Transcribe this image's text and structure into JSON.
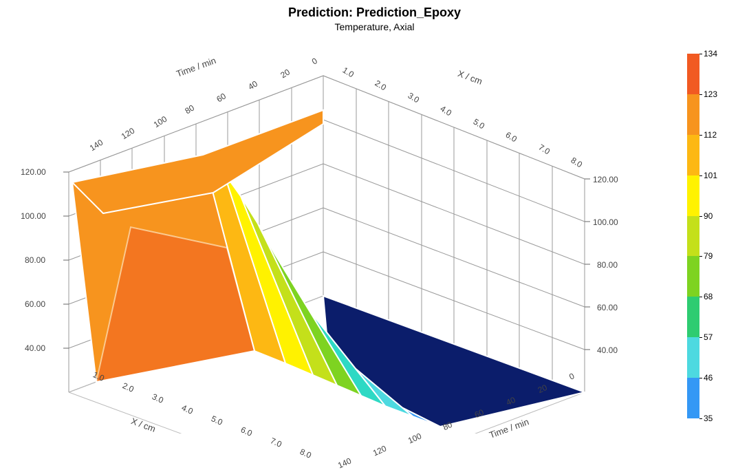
{
  "title": "Prediction: Prediction_Epoxy",
  "subtitle": "Temperature, Axial",
  "chart": {
    "type": "3d-surface",
    "x_axis": {
      "label": "X / cm",
      "ticks": [
        "1.0",
        "2.0",
        "3.0",
        "4.0",
        "5.0",
        "6.0",
        "7.0",
        "8.0"
      ]
    },
    "y_axis": {
      "label": "Time / min",
      "ticks": [
        "0",
        "20",
        "40",
        "60",
        "80",
        "100",
        "120",
        "140"
      ]
    },
    "z_axis": {
      "label": "",
      "ticks": [
        "40.00",
        "60.00",
        "80.00",
        "100.00",
        "120.00"
      ]
    },
    "colorbar": {
      "stops": [
        {
          "value": "134",
          "color": "#f15a22"
        },
        {
          "value": "123",
          "color": "#f7941e"
        },
        {
          "value": "112",
          "color": "#fdb813"
        },
        {
          "value": "101",
          "color": "#fff200"
        },
        {
          "value": "90",
          "color": "#c4e01a"
        },
        {
          "value": "79",
          "color": "#7ed321"
        },
        {
          "value": "68",
          "color": "#2ecc71"
        },
        {
          "value": "57",
          "color": "#4dd9e0"
        },
        {
          "value": "46",
          "color": "#3498f5"
        },
        {
          "value": "35",
          "color": "#0b1d6b"
        }
      ]
    },
    "background_color": "#ffffff",
    "grid_color": "#888888",
    "title_fontsize": 18,
    "subtitle_fontsize": 14,
    "tick_fontsize": 12,
    "label_fontsize": 13
  }
}
